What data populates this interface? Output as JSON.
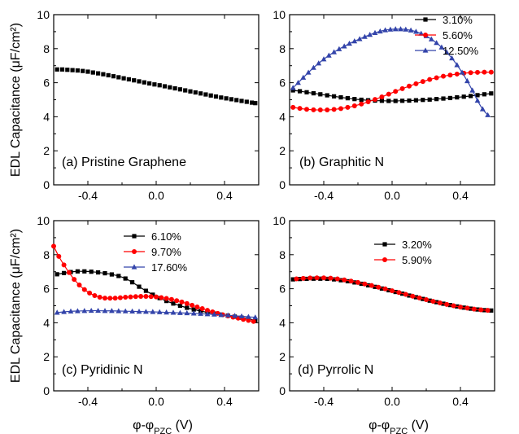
{
  "chart_data": [
    {
      "type": "scatter",
      "panel": "a",
      "annotation": "(a) Pristine Graphene",
      "ylabel": "EDL Capacitance (μF/cm²)",
      "xlabel": "",
      "xlim": [
        -0.6,
        0.6
      ],
      "ylim": [
        0,
        10
      ],
      "xticks": [
        -0.4,
        0.0,
        0.4
      ],
      "xtick_labels": [
        "-0.4",
        "0.0",
        "0.4"
      ],
      "yticks": [
        0,
        2,
        4,
        6,
        8,
        10
      ],
      "ytick_labels": [
        "0",
        "2",
        "4",
        "6",
        "8",
        "10"
      ],
      "show_xtick_labels": true,
      "show_ytick_labels": true,
      "legend": "none",
      "series": [
        {
          "name": "",
          "color": "#000000",
          "marker": "square",
          "line": false,
          "x": [
            -0.58,
            -0.55,
            -0.52,
            -0.49,
            -0.46,
            -0.43,
            -0.4,
            -0.37,
            -0.34,
            -0.31,
            -0.28,
            -0.25,
            -0.22,
            -0.19,
            -0.16,
            -0.13,
            -0.1,
            -0.07,
            -0.04,
            -0.01,
            0.02,
            0.05,
            0.08,
            0.11,
            0.14,
            0.17,
            0.2,
            0.23,
            0.26,
            0.29,
            0.32,
            0.35,
            0.38,
            0.41,
            0.44,
            0.47,
            0.5,
            0.53,
            0.56,
            0.58
          ],
          "y": [
            6.78,
            6.78,
            6.76,
            6.74,
            6.72,
            6.69,
            6.65,
            6.6,
            6.55,
            6.5,
            6.44,
            6.38,
            6.32,
            6.26,
            6.2,
            6.14,
            6.08,
            6.02,
            5.96,
            5.9,
            5.85,
            5.79,
            5.73,
            5.67,
            5.61,
            5.55,
            5.49,
            5.43,
            5.37,
            5.31,
            5.25,
            5.19,
            5.13,
            5.08,
            5.03,
            4.98,
            4.93,
            4.88,
            4.83,
            4.8
          ]
        }
      ]
    },
    {
      "type": "line",
      "panel": "b",
      "annotation": "(b) Graphitic N",
      "ylabel": "",
      "xlabel": "",
      "xlim": [
        -0.6,
        0.6
      ],
      "ylim": [
        0,
        10
      ],
      "xticks": [
        -0.4,
        0.0,
        0.4
      ],
      "xtick_labels": [
        "-0.4",
        "0.0",
        "0.4"
      ],
      "yticks": [
        0,
        2,
        4,
        6,
        8,
        10
      ],
      "ytick_labels": [
        "0",
        "2",
        "4",
        "6",
        "8",
        "10"
      ],
      "show_xtick_labels": true,
      "show_ytick_labels": true,
      "legend": "top-right",
      "series": [
        {
          "name": "3.10%",
          "color": "#000000",
          "marker": "square",
          "line": true,
          "x": [
            -0.58,
            -0.54,
            -0.5,
            -0.46,
            -0.42,
            -0.38,
            -0.34,
            -0.3,
            -0.26,
            -0.22,
            -0.18,
            -0.14,
            -0.1,
            -0.06,
            -0.02,
            0.02,
            0.06,
            0.1,
            0.14,
            0.18,
            0.22,
            0.26,
            0.3,
            0.34,
            0.38,
            0.42,
            0.46,
            0.5,
            0.54,
            0.58
          ],
          "y": [
            5.55,
            5.5,
            5.44,
            5.38,
            5.32,
            5.26,
            5.2,
            5.14,
            5.09,
            5.04,
            5.0,
            4.97,
            4.95,
            4.94,
            4.93,
            4.93,
            4.94,
            4.95,
            4.97,
            4.99,
            5.01,
            5.04,
            5.07,
            5.1,
            5.14,
            5.18,
            5.22,
            5.27,
            5.32,
            5.37
          ]
        },
        {
          "name": "5.60%",
          "color": "#ff0000",
          "marker": "circle",
          "line": true,
          "x": [
            -0.58,
            -0.54,
            -0.5,
            -0.46,
            -0.42,
            -0.38,
            -0.34,
            -0.3,
            -0.26,
            -0.22,
            -0.18,
            -0.14,
            -0.1,
            -0.06,
            -0.02,
            0.02,
            0.06,
            0.1,
            0.14,
            0.18,
            0.22,
            0.26,
            0.3,
            0.34,
            0.38,
            0.42,
            0.46,
            0.5,
            0.54,
            0.58
          ],
          "y": [
            4.55,
            4.49,
            4.44,
            4.41,
            4.4,
            4.4,
            4.43,
            4.48,
            4.55,
            4.64,
            4.75,
            4.88,
            5.02,
            5.17,
            5.33,
            5.49,
            5.65,
            5.8,
            5.94,
            6.07,
            6.19,
            6.29,
            6.38,
            6.45,
            6.51,
            6.56,
            6.59,
            6.61,
            6.62,
            6.62
          ]
        },
        {
          "name": "12.50%",
          "color": "#3344aa",
          "marker": "triangle",
          "line": true,
          "x": [
            -0.58,
            -0.55,
            -0.52,
            -0.49,
            -0.46,
            -0.43,
            -0.4,
            -0.37,
            -0.34,
            -0.31,
            -0.28,
            -0.25,
            -0.22,
            -0.19,
            -0.16,
            -0.13,
            -0.1,
            -0.07,
            -0.04,
            -0.01,
            0.02,
            0.05,
            0.08,
            0.11,
            0.14,
            0.17,
            0.2,
            0.23,
            0.26,
            0.29,
            0.32,
            0.35,
            0.38,
            0.41,
            0.44,
            0.47,
            0.5,
            0.53,
            0.56
          ],
          "y": [
            5.7,
            6.0,
            6.3,
            6.6,
            6.88,
            7.14,
            7.38,
            7.6,
            7.8,
            7.98,
            8.14,
            8.3,
            8.44,
            8.57,
            8.7,
            8.82,
            8.93,
            9.02,
            9.09,
            9.13,
            9.15,
            9.15,
            9.13,
            9.08,
            9.0,
            8.89,
            8.74,
            8.56,
            8.34,
            8.08,
            7.78,
            7.44,
            7.04,
            6.6,
            6.1,
            5.55,
            4.95,
            4.45,
            4.1
          ]
        }
      ]
    },
    {
      "type": "line",
      "panel": "c",
      "annotation": "(c) Pyridinic N",
      "ylabel": "EDL Capacitance (μF/cm²)",
      "xlabel": "φ-φ_PZC (V)",
      "xlim": [
        -0.6,
        0.6
      ],
      "ylim": [
        0,
        10
      ],
      "xticks": [
        -0.4,
        0.0,
        0.4
      ],
      "xtick_labels": [
        "-0.4",
        "0.0",
        "0.4"
      ],
      "yticks": [
        0,
        2,
        4,
        6,
        8,
        10
      ],
      "ytick_labels": [
        "0",
        "2",
        "4",
        "6",
        "8",
        "10"
      ],
      "show_xtick_labels": true,
      "show_ytick_labels": true,
      "legend": "top-center",
      "series": [
        {
          "name": "6.10%",
          "color": "#000000",
          "marker": "square",
          "line": true,
          "x": [
            -0.58,
            -0.54,
            -0.5,
            -0.46,
            -0.42,
            -0.38,
            -0.34,
            -0.3,
            -0.26,
            -0.22,
            -0.18,
            -0.14,
            -0.1,
            -0.06,
            -0.02,
            0.02,
            0.06,
            0.1,
            0.14,
            0.18,
            0.22,
            0.26,
            0.3,
            0.34,
            0.38,
            0.42,
            0.46,
            0.5,
            0.54,
            0.58
          ],
          "y": [
            6.85,
            6.92,
            6.98,
            7.02,
            7.02,
            7.0,
            6.96,
            6.91,
            6.84,
            6.75,
            6.6,
            6.38,
            6.12,
            5.88,
            5.65,
            5.45,
            5.28,
            5.13,
            5.0,
            4.88,
            4.78,
            4.69,
            4.61,
            4.54,
            4.48,
            4.42,
            4.36,
            4.3,
            4.23,
            4.15
          ]
        },
        {
          "name": "9.70%",
          "color": "#ff0000",
          "marker": "circle",
          "line": true,
          "x": [
            -0.6,
            -0.57,
            -0.54,
            -0.51,
            -0.48,
            -0.45,
            -0.42,
            -0.39,
            -0.36,
            -0.33,
            -0.3,
            -0.27,
            -0.24,
            -0.21,
            -0.18,
            -0.15,
            -0.12,
            -0.09,
            -0.06,
            -0.03,
            0.0,
            0.03,
            0.06,
            0.09,
            0.12,
            0.15,
            0.18,
            0.21,
            0.24,
            0.27,
            0.3,
            0.33,
            0.36,
            0.39,
            0.42,
            0.45,
            0.48,
            0.51,
            0.54,
            0.57
          ],
          "y": [
            8.5,
            7.9,
            7.4,
            6.95,
            6.55,
            6.22,
            5.95,
            5.75,
            5.6,
            5.5,
            5.45,
            5.44,
            5.45,
            5.47,
            5.5,
            5.52,
            5.54,
            5.55,
            5.55,
            5.54,
            5.52,
            5.48,
            5.43,
            5.37,
            5.3,
            5.22,
            5.13,
            5.03,
            4.93,
            4.83,
            4.73,
            4.64,
            4.55,
            4.47,
            4.4,
            4.33,
            4.27,
            4.2,
            4.14,
            4.08
          ]
        },
        {
          "name": "17.60%",
          "color": "#3344aa",
          "marker": "triangle",
          "line": true,
          "x": [
            -0.58,
            -0.54,
            -0.5,
            -0.46,
            -0.42,
            -0.38,
            -0.34,
            -0.3,
            -0.26,
            -0.22,
            -0.18,
            -0.14,
            -0.1,
            -0.06,
            -0.02,
            0.02,
            0.06,
            0.1,
            0.14,
            0.18,
            0.22,
            0.26,
            0.3,
            0.34,
            0.38,
            0.42,
            0.46,
            0.5,
            0.54,
            0.58
          ],
          "y": [
            4.6,
            4.64,
            4.67,
            4.69,
            4.7,
            4.71,
            4.71,
            4.7,
            4.7,
            4.69,
            4.68,
            4.67,
            4.66,
            4.65,
            4.64,
            4.63,
            4.61,
            4.6,
            4.58,
            4.57,
            4.55,
            4.53,
            4.51,
            4.49,
            4.46,
            4.44,
            4.41,
            4.38,
            4.35,
            4.32
          ]
        }
      ]
    },
    {
      "type": "line",
      "panel": "d",
      "annotation": "(d) Pyrrolic N",
      "ylabel": "",
      "xlabel": "φ-φ_PZC (V)",
      "xlim": [
        -0.6,
        0.6
      ],
      "ylim": [
        0,
        10
      ],
      "xticks": [
        -0.4,
        0.0,
        0.4
      ],
      "xtick_labels": [
        "-0.4",
        "0.0",
        "0.4"
      ],
      "yticks": [
        0,
        2,
        4,
        6,
        8,
        10
      ],
      "ytick_labels": [
        "0",
        "2",
        "4",
        "6",
        "8",
        "10"
      ],
      "show_xtick_labels": true,
      "show_ytick_labels": true,
      "legend": "top-center",
      "series": [
        {
          "name": "3.20%",
          "color": "#000000",
          "marker": "square",
          "line": true,
          "x": [
            -0.58,
            -0.54,
            -0.5,
            -0.46,
            -0.42,
            -0.38,
            -0.34,
            -0.3,
            -0.26,
            -0.22,
            -0.18,
            -0.14,
            -0.1,
            -0.06,
            -0.02,
            0.02,
            0.06,
            0.1,
            0.14,
            0.18,
            0.22,
            0.26,
            0.3,
            0.34,
            0.38,
            0.42,
            0.46,
            0.5,
            0.54,
            0.58
          ],
          "y": [
            6.55,
            6.57,
            6.58,
            6.59,
            6.59,
            6.58,
            6.55,
            6.5,
            6.44,
            6.37,
            6.29,
            6.2,
            6.11,
            6.01,
            5.91,
            5.81,
            5.71,
            5.6,
            5.5,
            5.4,
            5.3,
            5.21,
            5.12,
            5.04,
            4.96,
            4.89,
            4.83,
            4.78,
            4.74,
            4.72
          ]
        },
        {
          "name": "5.90%",
          "color": "#ff0000",
          "marker": "circle",
          "line": true,
          "x": [
            -0.56,
            -0.52,
            -0.48,
            -0.44,
            -0.4,
            -0.36,
            -0.32,
            -0.28,
            -0.24,
            -0.2,
            -0.16,
            -0.12,
            -0.08,
            -0.04,
            0.0,
            0.04,
            0.08,
            0.12,
            0.16,
            0.2,
            0.24,
            0.28,
            0.32,
            0.36,
            0.4,
            0.44,
            0.48,
            0.52,
            0.56
          ],
          "y": [
            6.58,
            6.61,
            6.63,
            6.64,
            6.64,
            6.62,
            6.58,
            6.52,
            6.45,
            6.37,
            6.28,
            6.19,
            6.09,
            5.99,
            5.88,
            5.78,
            5.67,
            5.56,
            5.46,
            5.36,
            5.26,
            5.17,
            5.08,
            5.0,
            4.92,
            4.86,
            4.8,
            4.76,
            4.73
          ]
        }
      ]
    }
  ]
}
